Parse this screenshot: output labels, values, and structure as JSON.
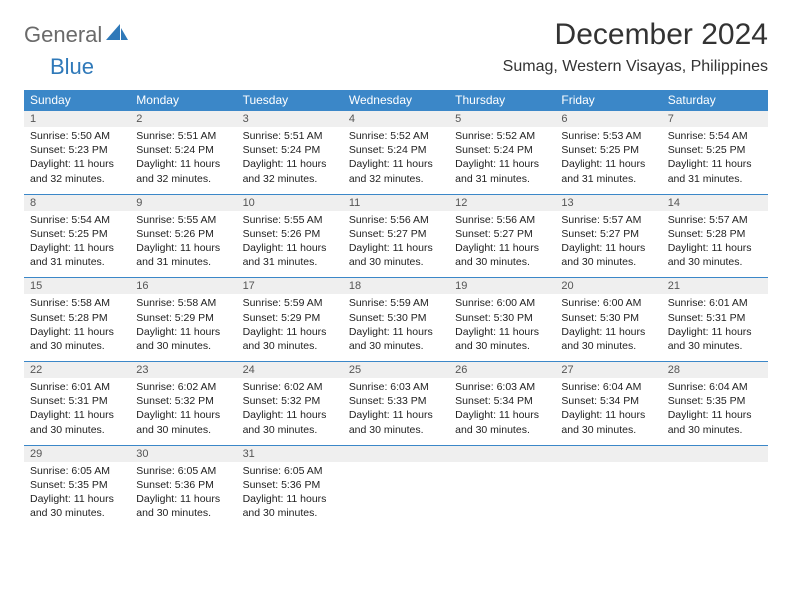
{
  "logo": {
    "general": "General",
    "blue": "Blue"
  },
  "title": "December 2024",
  "location": "Sumag, Western Visayas, Philippines",
  "colors": {
    "header_bg": "#3b87c8",
    "header_text": "#ffffff",
    "daynum_bg": "#efefef",
    "border": "#3b87c8",
    "body_text": "#222222",
    "logo_gray": "#6a6a6a",
    "logo_blue": "#2f79b9"
  },
  "dow": [
    "Sunday",
    "Monday",
    "Tuesday",
    "Wednesday",
    "Thursday",
    "Friday",
    "Saturday"
  ],
  "days": [
    {
      "n": "1",
      "sunrise": "Sunrise: 5:50 AM",
      "sunset": "Sunset: 5:23 PM",
      "daylight": "Daylight: 11 hours and 32 minutes."
    },
    {
      "n": "2",
      "sunrise": "Sunrise: 5:51 AM",
      "sunset": "Sunset: 5:24 PM",
      "daylight": "Daylight: 11 hours and 32 minutes."
    },
    {
      "n": "3",
      "sunrise": "Sunrise: 5:51 AM",
      "sunset": "Sunset: 5:24 PM",
      "daylight": "Daylight: 11 hours and 32 minutes."
    },
    {
      "n": "4",
      "sunrise": "Sunrise: 5:52 AM",
      "sunset": "Sunset: 5:24 PM",
      "daylight": "Daylight: 11 hours and 32 minutes."
    },
    {
      "n": "5",
      "sunrise": "Sunrise: 5:52 AM",
      "sunset": "Sunset: 5:24 PM",
      "daylight": "Daylight: 11 hours and 31 minutes."
    },
    {
      "n": "6",
      "sunrise": "Sunrise: 5:53 AM",
      "sunset": "Sunset: 5:25 PM",
      "daylight": "Daylight: 11 hours and 31 minutes."
    },
    {
      "n": "7",
      "sunrise": "Sunrise: 5:54 AM",
      "sunset": "Sunset: 5:25 PM",
      "daylight": "Daylight: 11 hours and 31 minutes."
    },
    {
      "n": "8",
      "sunrise": "Sunrise: 5:54 AM",
      "sunset": "Sunset: 5:25 PM",
      "daylight": "Daylight: 11 hours and 31 minutes."
    },
    {
      "n": "9",
      "sunrise": "Sunrise: 5:55 AM",
      "sunset": "Sunset: 5:26 PM",
      "daylight": "Daylight: 11 hours and 31 minutes."
    },
    {
      "n": "10",
      "sunrise": "Sunrise: 5:55 AM",
      "sunset": "Sunset: 5:26 PM",
      "daylight": "Daylight: 11 hours and 31 minutes."
    },
    {
      "n": "11",
      "sunrise": "Sunrise: 5:56 AM",
      "sunset": "Sunset: 5:27 PM",
      "daylight": "Daylight: 11 hours and 30 minutes."
    },
    {
      "n": "12",
      "sunrise": "Sunrise: 5:56 AM",
      "sunset": "Sunset: 5:27 PM",
      "daylight": "Daylight: 11 hours and 30 minutes."
    },
    {
      "n": "13",
      "sunrise": "Sunrise: 5:57 AM",
      "sunset": "Sunset: 5:27 PM",
      "daylight": "Daylight: 11 hours and 30 minutes."
    },
    {
      "n": "14",
      "sunrise": "Sunrise: 5:57 AM",
      "sunset": "Sunset: 5:28 PM",
      "daylight": "Daylight: 11 hours and 30 minutes."
    },
    {
      "n": "15",
      "sunrise": "Sunrise: 5:58 AM",
      "sunset": "Sunset: 5:28 PM",
      "daylight": "Daylight: 11 hours and 30 minutes."
    },
    {
      "n": "16",
      "sunrise": "Sunrise: 5:58 AM",
      "sunset": "Sunset: 5:29 PM",
      "daylight": "Daylight: 11 hours and 30 minutes."
    },
    {
      "n": "17",
      "sunrise": "Sunrise: 5:59 AM",
      "sunset": "Sunset: 5:29 PM",
      "daylight": "Daylight: 11 hours and 30 minutes."
    },
    {
      "n": "18",
      "sunrise": "Sunrise: 5:59 AM",
      "sunset": "Sunset: 5:30 PM",
      "daylight": "Daylight: 11 hours and 30 minutes."
    },
    {
      "n": "19",
      "sunrise": "Sunrise: 6:00 AM",
      "sunset": "Sunset: 5:30 PM",
      "daylight": "Daylight: 11 hours and 30 minutes."
    },
    {
      "n": "20",
      "sunrise": "Sunrise: 6:00 AM",
      "sunset": "Sunset: 5:30 PM",
      "daylight": "Daylight: 11 hours and 30 minutes."
    },
    {
      "n": "21",
      "sunrise": "Sunrise: 6:01 AM",
      "sunset": "Sunset: 5:31 PM",
      "daylight": "Daylight: 11 hours and 30 minutes."
    },
    {
      "n": "22",
      "sunrise": "Sunrise: 6:01 AM",
      "sunset": "Sunset: 5:31 PM",
      "daylight": "Daylight: 11 hours and 30 minutes."
    },
    {
      "n": "23",
      "sunrise": "Sunrise: 6:02 AM",
      "sunset": "Sunset: 5:32 PM",
      "daylight": "Daylight: 11 hours and 30 minutes."
    },
    {
      "n": "24",
      "sunrise": "Sunrise: 6:02 AM",
      "sunset": "Sunset: 5:32 PM",
      "daylight": "Daylight: 11 hours and 30 minutes."
    },
    {
      "n": "25",
      "sunrise": "Sunrise: 6:03 AM",
      "sunset": "Sunset: 5:33 PM",
      "daylight": "Daylight: 11 hours and 30 minutes."
    },
    {
      "n": "26",
      "sunrise": "Sunrise: 6:03 AM",
      "sunset": "Sunset: 5:34 PM",
      "daylight": "Daylight: 11 hours and 30 minutes."
    },
    {
      "n": "27",
      "sunrise": "Sunrise: 6:04 AM",
      "sunset": "Sunset: 5:34 PM",
      "daylight": "Daylight: 11 hours and 30 minutes."
    },
    {
      "n": "28",
      "sunrise": "Sunrise: 6:04 AM",
      "sunset": "Sunset: 5:35 PM",
      "daylight": "Daylight: 11 hours and 30 minutes."
    },
    {
      "n": "29",
      "sunrise": "Sunrise: 6:05 AM",
      "sunset": "Sunset: 5:35 PM",
      "daylight": "Daylight: 11 hours and 30 minutes."
    },
    {
      "n": "30",
      "sunrise": "Sunrise: 6:05 AM",
      "sunset": "Sunset: 5:36 PM",
      "daylight": "Daylight: 11 hours and 30 minutes."
    },
    {
      "n": "31",
      "sunrise": "Sunrise: 6:05 AM",
      "sunset": "Sunset: 5:36 PM",
      "daylight": "Daylight: 11 hours and 30 minutes."
    }
  ]
}
